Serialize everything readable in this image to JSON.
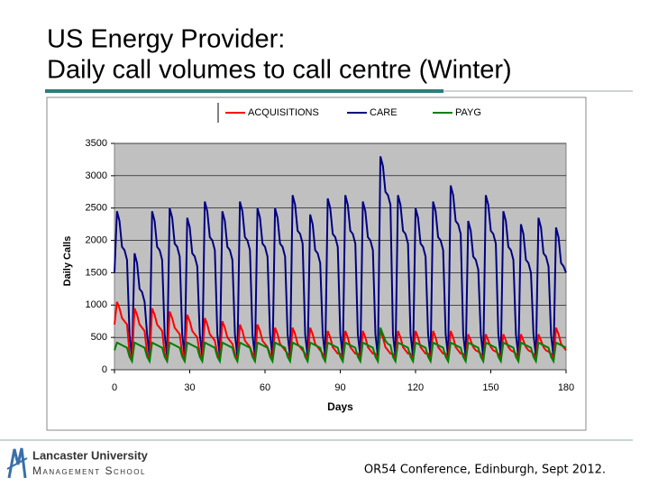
{
  "title": [
    "US Energy Provider:",
    "Daily call volumes to call centre (Winter)"
  ],
  "chart_data": {
    "type": "line",
    "x_label": "Days",
    "y_label": "Daily Calls",
    "x": [
      0,
      1,
      2,
      3,
      4,
      5,
      6,
      7,
      8,
      9,
      10,
      11,
      12,
      13,
      14,
      15,
      16,
      17,
      18,
      19,
      20,
      21,
      22,
      23,
      24,
      25,
      26,
      27,
      28,
      29,
      30,
      31,
      32,
      33,
      34,
      35,
      36,
      37,
      38,
      39,
      40,
      41,
      42,
      43,
      44,
      45,
      46,
      47,
      48,
      49,
      50,
      51,
      52,
      53,
      54,
      55,
      56,
      57,
      58,
      59,
      60,
      61,
      62,
      63,
      64,
      65,
      66,
      67,
      68,
      69,
      70,
      71,
      72,
      73,
      74,
      75,
      76,
      77,
      78,
      79,
      80,
      81,
      82,
      83,
      84,
      85,
      86,
      87,
      88,
      89,
      90,
      91,
      92,
      93,
      94,
      95,
      96,
      97,
      98,
      99,
      100,
      101,
      102,
      103,
      104,
      105,
      106,
      107,
      108,
      109,
      110,
      111,
      112,
      113,
      114,
      115,
      116,
      117,
      118,
      119,
      120,
      121,
      122,
      123,
      124,
      125,
      126,
      127,
      128,
      129,
      130,
      131,
      132,
      133,
      134,
      135,
      136,
      137,
      138,
      139,
      140,
      141,
      142,
      143,
      144,
      145,
      146,
      147,
      148,
      149,
      150,
      151,
      152,
      153,
      154,
      155,
      156,
      157,
      158,
      159,
      160,
      161,
      162,
      163,
      164,
      165,
      166,
      167,
      168,
      169,
      170,
      171,
      172,
      173,
      174,
      175,
      176,
      177,
      178,
      179,
      180
    ],
    "series": [
      {
        "name": "ACQUISITIONS",
        "color": "#ff0000",
        "values": [
          700,
          1050,
          950,
          800,
          750,
          700,
          250,
          150,
          950,
          850,
          700,
          650,
          600,
          250,
          150,
          950,
          850,
          700,
          650,
          600,
          250,
          150,
          900,
          800,
          650,
          600,
          550,
          250,
          150,
          850,
          750,
          600,
          550,
          500,
          250,
          150,
          800,
          700,
          550,
          500,
          450,
          250,
          150,
          750,
          650,
          500,
          450,
          400,
          250,
          150,
          700,
          600,
          450,
          400,
          350,
          250,
          150,
          700,
          600,
          450,
          400,
          350,
          250,
          150,
          650,
          550,
          400,
          350,
          300,
          250,
          150,
          650,
          550,
          400,
          350,
          300,
          250,
          150,
          650,
          550,
          400,
          350,
          300,
          250,
          150,
          600,
          500,
          350,
          300,
          250,
          250,
          150,
          600,
          500,
          350,
          300,
          250,
          250,
          150,
          600,
          500,
          350,
          300,
          250,
          250,
          150,
          600,
          500,
          350,
          300,
          250,
          250,
          150,
          600,
          500,
          350,
          300,
          250,
          250,
          150,
          600,
          500,
          350,
          300,
          250,
          250,
          150,
          600,
          500,
          350,
          300,
          250,
          250,
          150,
          600,
          500,
          350,
          300,
          250,
          250,
          150,
          550,
          450,
          350,
          300,
          280,
          250,
          150,
          550,
          450,
          350,
          300,
          280,
          250,
          150,
          550,
          450,
          350,
          300,
          280,
          250,
          150,
          550,
          450,
          350,
          300,
          280,
          250,
          150,
          550,
          450,
          350,
          300,
          280,
          250,
          150,
          650,
          550,
          400,
          350,
          300
        ]
      },
      {
        "name": "CARE",
        "color": "#000080",
        "values": [
          1500,
          2450,
          2300,
          1900,
          1850,
          1700,
          550,
          200,
          1800,
          1650,
          1250,
          1200,
          1050,
          550,
          200,
          2450,
          2300,
          1900,
          1850,
          1700,
          550,
          200,
          2500,
          2350,
          1950,
          1900,
          1750,
          550,
          200,
          2350,
          2200,
          1800,
          1750,
          1600,
          550,
          200,
          2600,
          2450,
          2050,
          2000,
          1850,
          550,
          200,
          2450,
          2300,
          1900,
          1850,
          1700,
          550,
          200,
          2600,
          2450,
          2050,
          2000,
          1850,
          550,
          200,
          2500,
          2350,
          1950,
          1900,
          1750,
          550,
          200,
          2500,
          2350,
          1950,
          1900,
          1750,
          550,
          200,
          2700,
          2550,
          2150,
          2100,
          1950,
          550,
          200,
          2400,
          2250,
          1850,
          1800,
          1650,
          550,
          200,
          2650,
          2500,
          2100,
          2050,
          1900,
          550,
          200,
          2700,
          2550,
          2150,
          2100,
          1950,
          550,
          200,
          2600,
          2450,
          2050,
          2000,
          1850,
          550,
          200,
          3300,
          3150,
          2750,
          2700,
          2550,
          550,
          200,
          2700,
          2550,
          2150,
          2100,
          1950,
          550,
          200,
          2500,
          2350,
          1950,
          1900,
          1750,
          550,
          200,
          2600,
          2450,
          2050,
          2000,
          1850,
          550,
          200,
          2850,
          2700,
          2300,
          2250,
          2100,
          550,
          200,
          2300,
          2150,
          1750,
          1700,
          1550,
          550,
          200,
          2700,
          2550,
          2150,
          2100,
          1950,
          550,
          200,
          2450,
          2300,
          1900,
          1850,
          1700,
          550,
          200,
          2250,
          2100,
          1700,
          1650,
          1500,
          550,
          200,
          2350,
          2200,
          1800,
          1750,
          1600,
          550,
          200,
          2200,
          2050,
          1650,
          1600,
          1500
        ]
      },
      {
        "name": "PAYG",
        "color": "#008000",
        "values": [
          300,
          420,
          400,
          380,
          360,
          340,
          200,
          130,
          420,
          400,
          380,
          360,
          340,
          200,
          130,
          420,
          400,
          380,
          360,
          340,
          200,
          130,
          420,
          400,
          380,
          360,
          340,
          200,
          130,
          420,
          400,
          380,
          360,
          340,
          200,
          130,
          420,
          400,
          380,
          360,
          340,
          200,
          130,
          420,
          400,
          380,
          360,
          340,
          200,
          130,
          420,
          400,
          380,
          360,
          340,
          200,
          130,
          420,
          400,
          380,
          360,
          340,
          200,
          130,
          420,
          400,
          380,
          360,
          340,
          200,
          130,
          420,
          400,
          380,
          360,
          340,
          200,
          130,
          420,
          400,
          380,
          360,
          340,
          200,
          130,
          420,
          400,
          380,
          360,
          340,
          200,
          130,
          420,
          400,
          380,
          360,
          340,
          200,
          130,
          420,
          400,
          380,
          360,
          340,
          200,
          130,
          650,
          550,
          450,
          400,
          380,
          200,
          130,
          420,
          400,
          380,
          360,
          340,
          200,
          130,
          420,
          400,
          380,
          360,
          340,
          200,
          130,
          420,
          400,
          380,
          360,
          340,
          200,
          130,
          420,
          400,
          380,
          360,
          340,
          200,
          130,
          420,
          400,
          380,
          360,
          340,
          200,
          130,
          420,
          400,
          380,
          360,
          340,
          200,
          130,
          420,
          400,
          380,
          360,
          340,
          200,
          130,
          420,
          400,
          380,
          360,
          340,
          200,
          130,
          420,
          400,
          380,
          360,
          340,
          200,
          130,
          420,
          400,
          380,
          360,
          340
        ]
      }
    ],
    "xlim": [
      0,
      180
    ],
    "xticks": [
      0,
      30,
      60,
      90,
      120,
      150,
      180
    ],
    "ylim": [
      0,
      3500
    ],
    "yticks": [
      0,
      500,
      1000,
      1500,
      2000,
      2500,
      3000,
      3500
    ],
    "grid": true,
    "legend": "top",
    "plot_background": "#c0c0c0"
  },
  "footer": {
    "logo_line1": "Lancaster University",
    "logo_line2": "Management School",
    "conference": "OR54 Conference, Edinburgh, Sept 2012."
  }
}
